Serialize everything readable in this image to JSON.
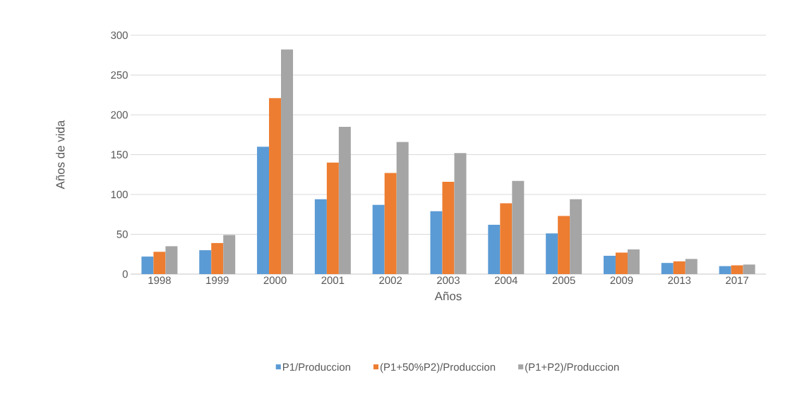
{
  "chart_data": {
    "type": "bar",
    "xlabel": "Años",
    "ylabel": "Años de vida",
    "categories": [
      "1998",
      "1999",
      "2000",
      "2001",
      "2002",
      "2003",
      "2004",
      "2005",
      "2009",
      "2013",
      "2017"
    ],
    "series": [
      {
        "name": "P1/Produccion",
        "color": "#5b9bd5",
        "values": [
          22,
          30,
          160,
          94,
          87,
          79,
          62,
          51,
          23,
          14,
          10
        ]
      },
      {
        "name": "(P1+50%P2)/Produccion",
        "color": "#ed7d31",
        "values": [
          28,
          39,
          221,
          140,
          127,
          116,
          89,
          73,
          27,
          16,
          11
        ]
      },
      {
        "name": "(P1+P2)/Produccion",
        "color": "#a5a5a5",
        "values": [
          35,
          49,
          282,
          185,
          166,
          152,
          117,
          94,
          31,
          19,
          12
        ]
      }
    ],
    "ylim": [
      0,
      300
    ],
    "yticks": [
      0,
      50,
      100,
      150,
      200,
      250,
      300
    ],
    "grid": "y",
    "legend": "bottom"
  }
}
